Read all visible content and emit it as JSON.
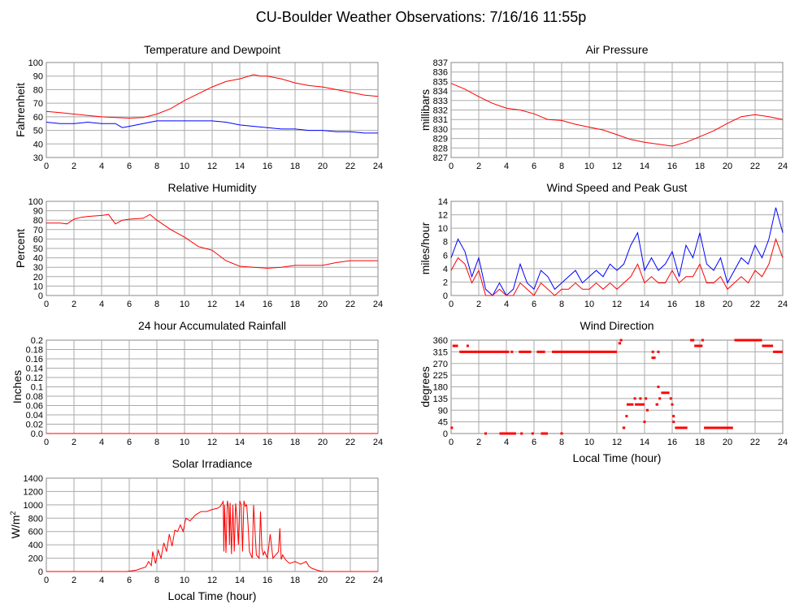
{
  "page": {
    "title": "CU-Boulder Weather Observations: 7/16/16 11:55p"
  },
  "colors": {
    "primary_series": "#ff0000",
    "secondary_series": "#0000ff",
    "grid": "#aaaaaa",
    "frame": "#888888"
  },
  "chart_data": [
    {
      "id": "temp",
      "type": "line",
      "title": "Temperature and Dewpoint",
      "xlabel": "",
      "ylabel": "Fahrenheit",
      "xlim": [
        0,
        24
      ],
      "ylim": [
        30,
        100
      ],
      "xticks": [
        "0",
        "2",
        "4",
        "6",
        "8",
        "10",
        "12",
        "14",
        "16",
        "18",
        "20",
        "22",
        "24"
      ],
      "yticks": [
        "30",
        "40",
        "50",
        "60",
        "70",
        "80",
        "90",
        "100"
      ],
      "grid": true,
      "series": [
        {
          "color": "#ff0000",
          "x": [
            0,
            1,
            2,
            3,
            4,
            5,
            6,
            7,
            8,
            9,
            10,
            11,
            12,
            13,
            14,
            15,
            15.5,
            16,
            17,
            18,
            19,
            20,
            21,
            22,
            23,
            24
          ],
          "y": [
            64,
            63,
            62,
            61,
            60,
            59.5,
            59,
            59.5,
            62,
            66,
            72,
            77,
            82,
            86,
            88,
            91,
            90,
            90,
            88,
            85,
            83,
            82,
            80,
            78,
            76,
            75
          ]
        },
        {
          "color": "#0000ff",
          "x": [
            0,
            1,
            2,
            3,
            4,
            5,
            5.5,
            6,
            7,
            8,
            9,
            10,
            11,
            12,
            13,
            14,
            15,
            16,
            17,
            18,
            19,
            20,
            21,
            22,
            23,
            24
          ],
          "y": [
            56,
            55,
            55,
            56,
            55,
            55,
            52,
            53,
            55,
            57,
            57,
            57,
            57,
            57,
            56,
            54,
            53,
            52,
            51,
            51,
            50,
            50,
            49,
            49,
            48,
            48
          ]
        }
      ]
    },
    {
      "id": "pressure",
      "type": "line",
      "title": "Air Pressure",
      "xlabel": "",
      "ylabel": "millibars",
      "xlim": [
        0,
        24
      ],
      "ylim": [
        827,
        837
      ],
      "xticks": [
        "0",
        "2",
        "4",
        "6",
        "8",
        "10",
        "12",
        "14",
        "16",
        "18",
        "20",
        "22",
        "24"
      ],
      "yticks": [
        "827",
        "828",
        "829",
        "830",
        "831",
        "832",
        "833",
        "834",
        "835",
        "836",
        "837"
      ],
      "grid": true,
      "series": [
        {
          "color": "#ff0000",
          "x": [
            0,
            1,
            2,
            3,
            4,
            5,
            6,
            7,
            8,
            9,
            10,
            11,
            12,
            13,
            14,
            15,
            16,
            17,
            18,
            19,
            20,
            21,
            22,
            23,
            24
          ],
          "y": [
            834.8,
            834.2,
            833.4,
            832.7,
            832.2,
            832.0,
            831.6,
            831.0,
            830.9,
            830.5,
            830.2,
            829.9,
            829.4,
            828.9,
            828.6,
            828.4,
            828.2,
            828.6,
            829.2,
            829.8,
            830.6,
            831.3,
            831.5,
            831.3,
            831.0
          ]
        }
      ]
    },
    {
      "id": "humidity",
      "type": "line",
      "title": "Relative Humidity",
      "xlabel": "",
      "ylabel": "Percent",
      "xlim": [
        0,
        24
      ],
      "ylim": [
        0,
        100
      ],
      "xticks": [
        "0",
        "2",
        "4",
        "6",
        "8",
        "10",
        "12",
        "14",
        "16",
        "18",
        "20",
        "22",
        "24"
      ],
      "yticks": [
        "0",
        "10",
        "20",
        "30",
        "40",
        "50",
        "60",
        "70",
        "80",
        "90",
        "100"
      ],
      "grid": true,
      "series": [
        {
          "color": "#ff0000",
          "x": [
            0,
            1,
            1.5,
            2,
            2.5,
            3,
            4,
            4.5,
            5,
            5.5,
            6,
            7,
            7.5,
            8,
            9,
            10,
            11,
            12,
            13,
            14,
            15,
            16,
            17,
            18,
            19,
            20,
            21,
            22,
            23,
            24
          ],
          "y": [
            77,
            77,
            76,
            81,
            83,
            84,
            85,
            86,
            76,
            80,
            81,
            82,
            86,
            80,
            70,
            62,
            52,
            48,
            37,
            31,
            30,
            29,
            30,
            32,
            32,
            32,
            35,
            37,
            37,
            37
          ]
        }
      ]
    },
    {
      "id": "wind",
      "type": "line",
      "title": "Wind Speed and Peak Gust",
      "xlabel": "",
      "ylabel": "miles/hour",
      "xlim": [
        0,
        24
      ],
      "ylim": [
        0,
        15
      ],
      "xticks": [
        "0",
        "2",
        "4",
        "6",
        "8",
        "10",
        "12",
        "14",
        "16",
        "18",
        "20",
        "22",
        "24"
      ],
      "yticks": [
        "0",
        "2",
        "4",
        "6",
        "8",
        "10",
        "12",
        "14"
      ],
      "grid": true,
      "series": [
        {
          "color": "#0000ff",
          "x": [
            0,
            0.5,
            1,
            1.5,
            2,
            2.5,
            3,
            3.5,
            4,
            4.5,
            5,
            5.5,
            6,
            6.5,
            7,
            7.5,
            8,
            8.5,
            9,
            9.5,
            10,
            10.5,
            11,
            11.5,
            12,
            12.5,
            13,
            13.5,
            14,
            14.5,
            15,
            15.5,
            16,
            16.5,
            17,
            17.5,
            18,
            18.5,
            19,
            19.5,
            20,
            20.5,
            21,
            21.5,
            22,
            22.5,
            23,
            23.5,
            24
          ],
          "y": [
            6,
            9,
            7,
            3,
            6,
            1,
            0,
            2,
            0,
            1,
            5,
            2,
            1,
            4,
            3,
            1,
            2,
            3,
            4,
            2,
            3,
            4,
            3,
            5,
            4,
            5,
            8,
            10,
            4,
            6,
            4,
            5,
            7,
            3,
            8,
            6,
            10,
            5,
            4,
            6,
            2,
            4,
            6,
            5,
            8,
            6,
            9,
            14,
            10
          ]
        },
        {
          "color": "#ff0000",
          "x": [
            0,
            0.5,
            1,
            1.5,
            2,
            2.5,
            3,
            3.5,
            4,
            4.5,
            5,
            5.5,
            6,
            6.5,
            7,
            7.5,
            8,
            8.5,
            9,
            9.5,
            10,
            10.5,
            11,
            11.5,
            12,
            12.5,
            13,
            13.5,
            14,
            14.5,
            15,
            15.5,
            16,
            16.5,
            17,
            17.5,
            18,
            18.5,
            19,
            19.5,
            20,
            20.5,
            21,
            21.5,
            22,
            22.5,
            23,
            23.5,
            24
          ],
          "y": [
            4,
            6,
            5,
            2,
            4,
            0,
            0,
            1,
            0,
            0,
            2,
            1,
            0,
            2,
            1,
            0,
            1,
            1,
            2,
            1,
            1,
            2,
            1,
            2,
            1,
            2,
            3,
            5,
            2,
            3,
            2,
            2,
            4,
            2,
            3,
            3,
            5,
            2,
            2,
            3,
            1,
            2,
            3,
            2,
            4,
            3,
            5,
            9,
            6
          ]
        }
      ]
    },
    {
      "id": "rain",
      "type": "line",
      "title": "24 hour Accumulated Rainfall",
      "xlabel": "",
      "ylabel": "Inches",
      "xlim": [
        0,
        24
      ],
      "ylim": [
        0,
        0.2
      ],
      "xticks": [
        "0",
        "2",
        "4",
        "6",
        "8",
        "10",
        "12",
        "14",
        "16",
        "18",
        "20",
        "22",
        "24"
      ],
      "yticks": [
        "0.0",
        "0.02",
        "0.04",
        "0.06",
        "0.08",
        "0.1",
        "0.12",
        "0.14",
        "0.16",
        "0.18",
        "0.2"
      ],
      "grid": true,
      "series": [
        {
          "color": "#ff0000",
          "x": [
            0,
            24
          ],
          "y": [
            0,
            0
          ]
        }
      ]
    },
    {
      "id": "winddir",
      "type": "scatter",
      "title": "Wind Direction",
      "xlabel": "Local Time (hour)",
      "ylabel": "degrees",
      "xlim": [
        0,
        24
      ],
      "ylim": [
        0,
        360
      ],
      "xticks": [
        "0",
        "2",
        "4",
        "6",
        "8",
        "10",
        "12",
        "14",
        "16",
        "18",
        "20",
        "22",
        "24"
      ],
      "yticks": [
        "0",
        "45",
        "90",
        "135",
        "180",
        "225",
        "270",
        "315",
        "360"
      ],
      "grid": true,
      "segments": [
        {
          "x0": 0.1,
          "x1": 0.5,
          "y": 338
        },
        {
          "x0": 0.6,
          "x1": 4.2,
          "y": 315
        },
        {
          "x0": 4.9,
          "x1": 5.8,
          "y": 315
        },
        {
          "x0": 6.2,
          "x1": 6.8,
          "y": 315
        },
        {
          "x0": 7.3,
          "x1": 12.0,
          "y": 315
        },
        {
          "x0": 12.1,
          "x1": 12.3,
          "y": 348
        },
        {
          "x0": 12.4,
          "x1": 12.6,
          "y": 22
        },
        {
          "x0": 12.7,
          "x1": 13.2,
          "y": 112
        },
        {
          "x0": 13.3,
          "x1": 14.0,
          "y": 112
        },
        {
          "x0": 14.5,
          "x1": 14.8,
          "y": 292
        },
        {
          "x0": 14.8,
          "x1": 15.0,
          "y": 112
        },
        {
          "x0": 15.2,
          "x1": 15.8,
          "y": 157
        },
        {
          "x0": 16.2,
          "x1": 17.1,
          "y": 22
        },
        {
          "x0": 17.3,
          "x1": 17.6,
          "y": 360
        },
        {
          "x0": 17.6,
          "x1": 18.2,
          "y": 338
        },
        {
          "x0": 18.3,
          "x1": 20.4,
          "y": 22
        },
        {
          "x0": 20.5,
          "x1": 22.5,
          "y": 360
        },
        {
          "x0": 22.5,
          "x1": 23.3,
          "y": 338
        },
        {
          "x0": 23.3,
          "x1": 24.0,
          "y": 315
        },
        {
          "x0": 3.5,
          "x1": 4.7,
          "y": 0
        },
        {
          "x0": 6.5,
          "x1": 7.0,
          "y": 0
        }
      ],
      "points": [
        {
          "x": 0.05,
          "y": 22
        },
        {
          "x": 1.2,
          "y": 338
        },
        {
          "x": 2.5,
          "y": 0
        },
        {
          "x": 5.1,
          "y": 0
        },
        {
          "x": 5.9,
          "y": 0
        },
        {
          "x": 8.0,
          "y": 0
        },
        {
          "x": 13.3,
          "y": 135
        },
        {
          "x": 13.7,
          "y": 135
        },
        {
          "x": 14.1,
          "y": 135
        },
        {
          "x": 14.2,
          "y": 90
        },
        {
          "x": 14.0,
          "y": 45
        },
        {
          "x": 15.0,
          "y": 180
        },
        {
          "x": 15.1,
          "y": 135
        },
        {
          "x": 15.9,
          "y": 135
        },
        {
          "x": 16.0,
          "y": 112
        },
        {
          "x": 16.1,
          "y": 67
        },
        {
          "x": 16.1,
          "y": 45
        },
        {
          "x": 17.5,
          "y": 360
        },
        {
          "x": 18.2,
          "y": 360
        },
        {
          "x": 12.7,
          "y": 67
        },
        {
          "x": 12.3,
          "y": 360
        },
        {
          "x": 15.0,
          "y": 315
        },
        {
          "x": 14.6,
          "y": 315
        },
        {
          "x": 4.4,
          "y": 315
        }
      ]
    },
    {
      "id": "solar",
      "type": "line",
      "title": "Solar Irradiance",
      "xlabel": "Local Time (hour)",
      "ylabel": "W/m",
      "ylabel_sup": "2",
      "xlim": [
        0,
        24
      ],
      "ylim": [
        0,
        1400
      ],
      "xticks": [
        "0",
        "2",
        "4",
        "6",
        "8",
        "10",
        "12",
        "14",
        "16",
        "18",
        "20",
        "22",
        "24"
      ],
      "yticks": [
        "0",
        "200",
        "400",
        "600",
        "800",
        "1000",
        "1200",
        "1400"
      ],
      "grid": true,
      "series": [
        {
          "color": "#ff0000",
          "x": [
            0,
            5.8,
            6.5,
            7.2,
            7.4,
            7.6,
            7.7,
            7.9,
            8.1,
            8.3,
            8.5,
            8.7,
            8.9,
            9.1,
            9.3,
            9.5,
            9.7,
            9.9,
            10.1,
            10.4,
            10.8,
            11.2,
            11.6,
            12.0,
            12.4,
            12.6,
            12.8,
            12.85,
            12.9,
            13.0,
            13.1,
            13.2,
            13.25,
            13.3,
            13.4,
            13.5,
            13.6,
            13.7,
            13.8,
            13.9,
            14.0,
            14.1,
            14.2,
            14.3,
            14.4,
            14.5,
            14.6,
            14.7,
            14.8,
            14.9,
            15.0,
            15.2,
            15.4,
            15.5,
            15.6,
            15.7,
            15.8,
            16.0,
            16.2,
            16.4,
            16.6,
            16.8,
            16.9,
            17.0,
            17.1,
            17.3,
            17.6,
            18.0,
            18.4,
            18.8,
            19.0,
            19.2,
            19.6,
            20.0,
            20.2,
            24
          ],
          "y": [
            0,
            0,
            20,
            70,
            150,
            90,
            300,
            120,
            320,
            200,
            430,
            300,
            560,
            380,
            620,
            600,
            700,
            600,
            800,
            760,
            850,
            900,
            900,
            930,
            950,
            980,
            1050,
            300,
            1000,
            280,
            1060,
            950,
            400,
            1030,
            260,
            1000,
            300,
            1020,
            800,
            400,
            1060,
            1000,
            300,
            1060,
            980,
            1000,
            700,
            300,
            250,
            200,
            1000,
            250,
            200,
            900,
            350,
            250,
            300,
            200,
            560,
            200,
            250,
            300,
            650,
            180,
            250,
            180,
            120,
            150,
            110,
            150,
            80,
            50,
            20,
            0,
            0,
            0
          ]
        }
      ]
    }
  ]
}
